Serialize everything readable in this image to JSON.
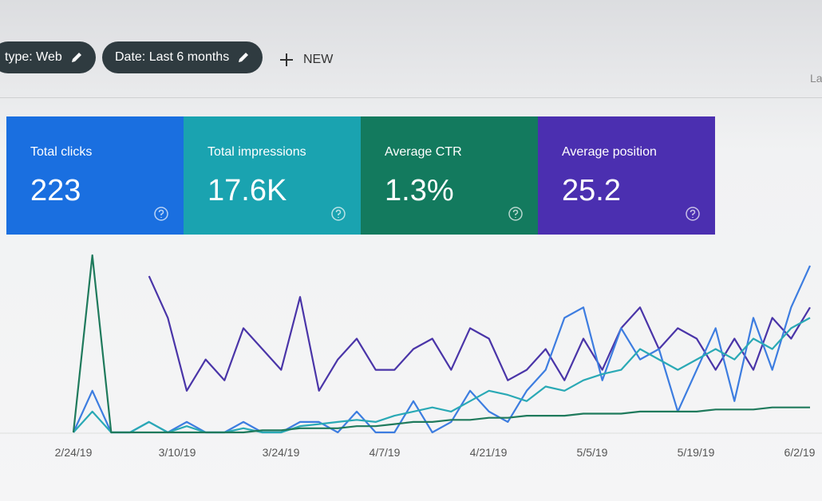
{
  "toolbar": {
    "chips": [
      "type: Web",
      "Date: Last 6 months"
    ],
    "new_button": "NEW",
    "cut_off_text": "La"
  },
  "cards": [
    {
      "label": "Total clicks",
      "value": "223",
      "color": "#1a6fe0"
    },
    {
      "label": "Total impressions",
      "value": "17.6K",
      "color": "#1aa3b0"
    },
    {
      "label": "Average CTR",
      "value": "1.3%",
      "color": "#137a5e"
    },
    {
      "label": "Average position",
      "value": "25.2",
      "color": "#4b2fb0"
    }
  ],
  "chart_data": {
    "type": "line",
    "xticks": [
      "2/24/19",
      "3/10/19",
      "3/24/19",
      "4/7/19",
      "4/21/19",
      "5/5/19",
      "5/19/19",
      "6/2/19"
    ],
    "series": [
      {
        "color": "#4a35a8",
        "values": [
          null,
          null,
          null,
          null,
          75,
          55,
          20,
          35,
          25,
          50,
          40,
          30,
          65,
          20,
          35,
          45,
          30,
          30,
          40,
          45,
          30,
          50,
          45,
          25,
          30,
          40,
          25,
          45,
          30,
          50,
          60,
          40,
          50,
          45,
          30,
          45,
          30,
          55,
          45,
          60
        ]
      },
      {
        "color": "#3d7de0",
        "values": [
          0,
          20,
          0,
          0,
          5,
          0,
          5,
          0,
          0,
          5,
          0,
          0,
          5,
          5,
          0,
          10,
          0,
          0,
          15,
          0,
          5,
          20,
          10,
          5,
          20,
          30,
          55,
          60,
          25,
          50,
          35,
          40,
          10,
          30,
          50,
          15,
          55,
          30,
          60,
          80
        ]
      },
      {
        "color": "#2aa9b5",
        "values": [
          0,
          10,
          0,
          0,
          5,
          0,
          3,
          0,
          0,
          2,
          0,
          0,
          3,
          4,
          5,
          6,
          5,
          8,
          10,
          12,
          10,
          15,
          20,
          18,
          15,
          22,
          20,
          25,
          28,
          30,
          40,
          35,
          30,
          35,
          40,
          35,
          45,
          40,
          50,
          55
        ]
      },
      {
        "color": "#1f7a5c",
        "values": [
          0,
          85,
          0,
          0,
          0,
          0,
          0,
          0,
          0,
          0,
          1,
          1,
          2,
          2,
          2,
          3,
          3,
          4,
          5,
          5,
          6,
          6,
          7,
          7,
          8,
          8,
          8,
          9,
          9,
          9,
          10,
          10,
          10,
          10,
          11,
          11,
          11,
          12,
          12,
          12
        ]
      }
    ]
  }
}
